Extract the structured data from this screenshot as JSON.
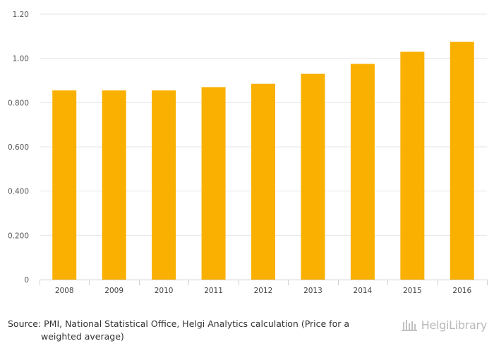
{
  "chart_data": {
    "type": "bar",
    "categories": [
      "2008",
      "2009",
      "2010",
      "2011",
      "2012",
      "2013",
      "2014",
      "2015",
      "2016"
    ],
    "values": [
      0.855,
      0.855,
      0.855,
      0.87,
      0.885,
      0.93,
      0.975,
      1.03,
      1.075
    ],
    "ylim": [
      0,
      1.2
    ],
    "yticks": [
      0,
      0.2,
      0.4,
      0.6,
      0.8,
      1.0,
      1.2
    ],
    "ytick_labels": [
      "0",
      "0.200",
      "0.400",
      "0.600",
      "0.800",
      "1.00",
      "1.20"
    ],
    "grid": true,
    "bar_color": "#F9B000"
  },
  "footer": {
    "source_line1": "Source: PMI, National Statistical Office, Helgi Analytics calculation (Price for a",
    "source_line2": "weighted average)"
  },
  "brand": {
    "name": "HelgiLibrary",
    "logo_icon": "helgi-library-logo-icon",
    "color": "#b8b8b8"
  }
}
